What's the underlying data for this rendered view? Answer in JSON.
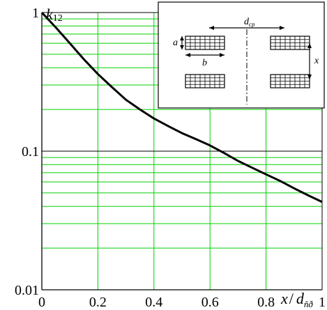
{
  "chart_data": {
    "type": "line",
    "xlabel_main": "x",
    "xlabel_sep": "/",
    "xlabel_d": "d",
    "xlabel_sub": "ñð",
    "ylabel_main": "k",
    "ylabel_sub": "12",
    "xlim": [
      0,
      1
    ],
    "ylim": [
      0.01,
      1
    ],
    "yscale": "log",
    "grid": true,
    "x_ticks": [
      "0",
      "0.2",
      "0.4",
      "0.6",
      "0.8",
      "1"
    ],
    "y_ticks": [
      "1",
      "0.1",
      "0.01"
    ],
    "series": [
      {
        "x": [
          0,
          0.05,
          0.1,
          0.15,
          0.2,
          0.25,
          0.3,
          0.35,
          0.4,
          0.45,
          0.5,
          0.55,
          0.6,
          0.65,
          0.7,
          0.75,
          0.8,
          0.85,
          0.9,
          0.95,
          1.0
        ],
        "y": [
          1.0,
          0.78,
          0.6,
          0.46,
          0.36,
          0.29,
          0.235,
          0.2,
          0.172,
          0.152,
          0.135,
          0.122,
          0.11,
          0.097,
          0.085,
          0.076,
          0.068,
          0.061,
          0.054,
          0.048,
          0.043
        ]
      }
    ]
  },
  "inset": {
    "label_a": "a",
    "label_b": "b",
    "label_x": "x",
    "label_d": "d",
    "label_d_sub": "cp"
  }
}
